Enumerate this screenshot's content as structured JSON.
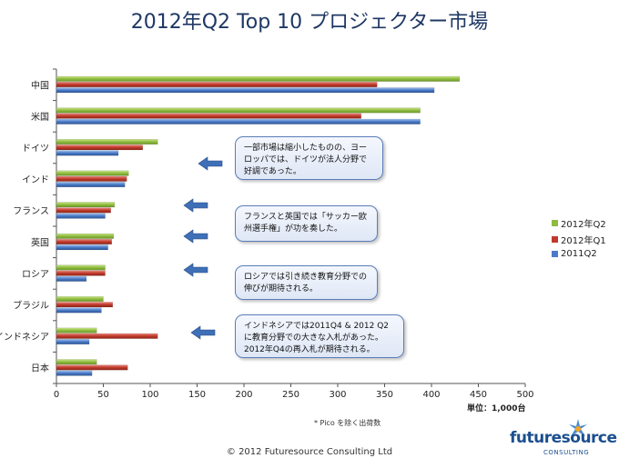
{
  "title": "2012年Q2 Top 10 プロジェクター市場",
  "unit_label": "単位：1,000台",
  "footnote": "* Pico を除く出荷数",
  "copyright": "© 2012 Futuresource Consulting Ltd",
  "logo": {
    "wordmark": "futuresource",
    "tagline": "CONSULTING"
  },
  "callouts": [
    "一部市場は縮小したものの、ヨーロッパでは、ドイツが法人分野で好調であった。",
    "フランスと英国では「サッカー欧州選手権」が功を奏した。",
    "ロシアでは引き続き教育分野での伸びが期待される。",
    "インドネシアでは2011Q4 & 2012 Q2 に教育分野での大きな入札があった。 2012年Q4の再入札が期待される。"
  ],
  "chart_data": {
    "type": "bar",
    "orientation": "horizontal",
    "categories": [
      "中国",
      "米国",
      "ドイツ",
      "インド",
      "フランス",
      "英国",
      "ロシア",
      "ブラジル",
      "インドネシア",
      "日本"
    ],
    "series": [
      {
        "name": "2012年Q2",
        "color": "#8fbc3f",
        "values": [
          430,
          388,
          108,
          77,
          62,
          61,
          52,
          50,
          43,
          43
        ]
      },
      {
        "name": "2012年Q1",
        "color": "#c0392b",
        "values": [
          342,
          325,
          92,
          75,
          58,
          59,
          52,
          60,
          108,
          76
        ]
      },
      {
        "name": "2011Q2",
        "color": "#4a7bc8",
        "values": [
          403,
          388,
          66,
          73,
          52,
          55,
          32,
          48,
          35,
          38
        ]
      }
    ],
    "legend_order": [
      "2012年Q2",
      "2012年Q1",
      "2011Q2"
    ],
    "legend_position": "right",
    "xlim": [
      0,
      500
    ],
    "xticks": [
      0,
      50,
      100,
      150,
      200,
      250,
      300,
      350,
      400,
      450,
      500
    ],
    "grid": false
  }
}
